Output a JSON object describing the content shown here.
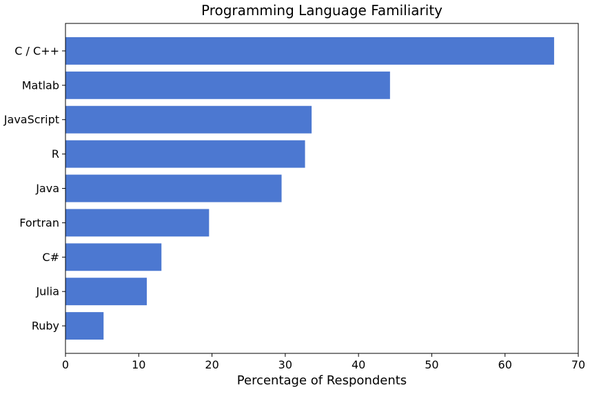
{
  "chart_data": {
    "type": "bar",
    "orientation": "horizontal",
    "title": "Programming Language Familiarity",
    "xlabel": "Percentage of Respondents",
    "ylabel": "",
    "categories": [
      "C / C++",
      "Matlab",
      "JavaScript",
      "R",
      "Java",
      "Fortran",
      "C#",
      "Julia",
      "Ruby"
    ],
    "values": [
      66.7,
      44.3,
      33.6,
      32.7,
      29.5,
      19.6,
      13.1,
      11.1,
      5.2
    ],
    "xlim": [
      0,
      70
    ],
    "xticks": [
      "0",
      "10",
      "20",
      "30",
      "40",
      "50",
      "60",
      "70"
    ],
    "grid": false,
    "legend": "none",
    "bar_color": "#4C78D1"
  }
}
